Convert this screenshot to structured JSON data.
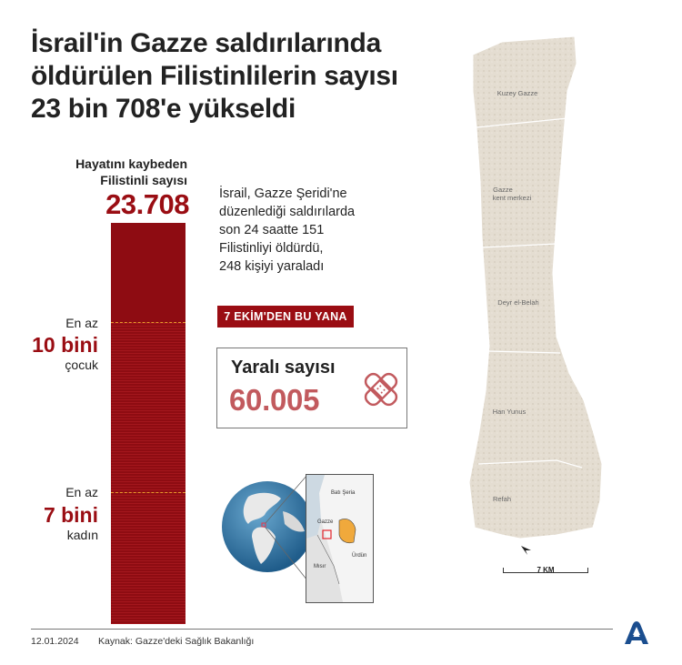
{
  "title": [
    "İsrail'in Gazze saldırılarında",
    "öldürülen Filistinlilerin sayısı",
    "23 bin 708'e yükseldi"
  ],
  "dead": {
    "caption_line1": "Hayatını kaybeden",
    "caption_line2": "Filistinli sayısı",
    "value": "23.708",
    "value_num": 23708
  },
  "markers": [
    {
      "prefix": "En az",
      "value": "10 bini",
      "suffix": "çocuk",
      "value_num": 10000
    },
    {
      "prefix": "En az",
      "value": "7 bini",
      "suffix": "kadın",
      "value_num": 7000
    }
  ],
  "description": [
    "İsrail, Gazze Şeridi'ne",
    "düzenlediği saldırılarda",
    "son 24 saatte 151",
    "Filistinliyi öldürdü,",
    "248 kişiyi yaraladı"
  ],
  "since_badge": "7 EKİM'DEN BU YANA",
  "injured": {
    "label": "Yaralı sayısı",
    "value": "60.005",
    "icon": "bandage-icon"
  },
  "inset": {
    "west_bank": "Batı Şeria",
    "gaza": "Gazze",
    "jordan": "Ürdün",
    "egypt": "Mısır"
  },
  "map": {
    "regions": [
      "Kuzey Gazze",
      "Gazze",
      "kent merkezi",
      "Deyr el-Belah",
      "Han Yunus",
      "Refah"
    ],
    "scale_label": "7 KM",
    "compass_icon": "north-arrow-icon"
  },
  "footer": {
    "date": "12.01.2024",
    "source": "Kaynak: Gazze'deki Sağlık Bakanlığı",
    "logo": "aa-logo-icon"
  },
  "colors": {
    "primary_red": "#9a0d13",
    "injured_value": "#c25a5e",
    "marker_line": "#e79a2b",
    "map_fill": "#e4ddd1"
  }
}
